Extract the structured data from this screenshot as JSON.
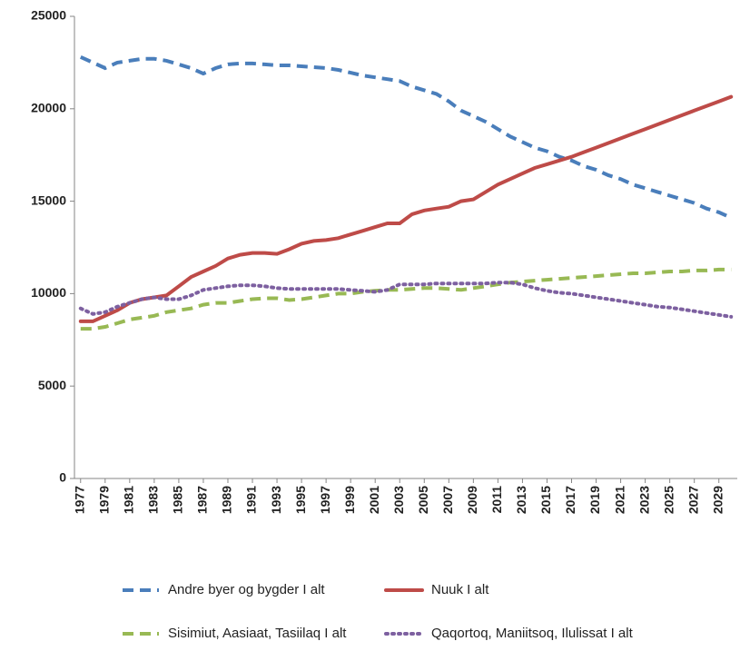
{
  "chart_data": {
    "type": "line",
    "x": [
      1977,
      1978,
      1979,
      1980,
      1981,
      1982,
      1983,
      1984,
      1985,
      1986,
      1987,
      1988,
      1989,
      1990,
      1991,
      1992,
      1993,
      1994,
      1995,
      1996,
      1997,
      1998,
      1999,
      2000,
      2001,
      2002,
      2003,
      2004,
      2005,
      2006,
      2007,
      2008,
      2009,
      2010,
      2011,
      2012,
      2013,
      2014,
      2015,
      2016,
      2017,
      2018,
      2019,
      2020,
      2021,
      2022,
      2023,
      2024,
      2025,
      2026,
      2027,
      2028,
      2029,
      2030
    ],
    "series": [
      {
        "name": "Andre byer og bygder I alt",
        "color": "#4a7ebb",
        "dash": "dashed",
        "values": [
          22800,
          22500,
          22200,
          22500,
          22600,
          22700,
          22700,
          22600,
          22400,
          22200,
          21900,
          22200,
          22400,
          22450,
          22450,
          22400,
          22350,
          22350,
          22300,
          22250,
          22200,
          22100,
          21950,
          21800,
          21700,
          21600,
          21500,
          21200,
          21000,
          20800,
          20400,
          19900,
          19600,
          19300,
          18900,
          18500,
          18200,
          17900,
          17700,
          17400,
          17200,
          16900,
          16700,
          16400,
          16200,
          15900,
          15700,
          15500,
          15300,
          15100,
          14900,
          14600,
          14400,
          14100
        ]
      },
      {
        "name": "Nuuk I alt",
        "color": "#be4b48",
        "dash": "solid",
        "values": [
          8500,
          8500,
          8800,
          9100,
          9500,
          9700,
          9800,
          9900,
          10400,
          10900,
          11200,
          11500,
          11900,
          12100,
          12200,
          12200,
          12150,
          12400,
          12700,
          12850,
          12900,
          13000,
          13200,
          13400,
          13600,
          13800,
          13800,
          14300,
          14500,
          14600,
          14700,
          15000,
          15100,
          15500,
          15900,
          16200,
          16500,
          16800,
          17000,
          17200,
          17400,
          17650,
          17900,
          18150,
          18400,
          18650,
          18900,
          19150,
          19400,
          19650,
          19900,
          20150,
          20400,
          20650
        ]
      },
      {
        "name": "Sisimiut, Aasiaat, Tasiilaq I alt",
        "color": "#98b954",
        "dash": "dashed",
        "values": [
          8100,
          8100,
          8200,
          8400,
          8600,
          8700,
          8800,
          9000,
          9100,
          9200,
          9400,
          9500,
          9500,
          9600,
          9700,
          9750,
          9750,
          9650,
          9700,
          9800,
          9900,
          10000,
          10000,
          10100,
          10150,
          10200,
          10200,
          10250,
          10300,
          10300,
          10250,
          10200,
          10300,
          10400,
          10500,
          10600,
          10650,
          10700,
          10750,
          10800,
          10850,
          10900,
          10950,
          11000,
          11050,
          11100,
          11100,
          11150,
          11200,
          11200,
          11250,
          11250,
          11300,
          11300
        ]
      },
      {
        "name": "Qaqortoq, Maniitsoq, Ilulissat I alt",
        "color": "#7d60a0",
        "dash": "dotted",
        "values": [
          9200,
          8900,
          9000,
          9300,
          9500,
          9700,
          9800,
          9700,
          9700,
          9900,
          10200,
          10300,
          10400,
          10450,
          10450,
          10400,
          10300,
          10250,
          10250,
          10250,
          10250,
          10250,
          10200,
          10150,
          10100,
          10200,
          10500,
          10500,
          10500,
          10550,
          10550,
          10550,
          10550,
          10550,
          10600,
          10600,
          10500,
          10300,
          10150,
          10050,
          10000,
          9900,
          9800,
          9700,
          9600,
          9500,
          9400,
          9300,
          9250,
          9150,
          9050,
          8950,
          8850,
          8750
        ]
      }
    ],
    "xlim": [
      1976.5,
      2030.5
    ],
    "xticks": [
      1977,
      1979,
      1981,
      1983,
      1985,
      1987,
      1989,
      1991,
      1993,
      1995,
      1997,
      1999,
      2001,
      2003,
      2005,
      2007,
      2009,
      2011,
      2013,
      2015,
      2017,
      2019,
      2021,
      2023,
      2025,
      2027,
      2029
    ],
    "ylim": [
      0,
      25000
    ],
    "yticks": [
      0,
      5000,
      10000,
      15000,
      20000,
      25000
    ],
    "legend": "bottom"
  }
}
